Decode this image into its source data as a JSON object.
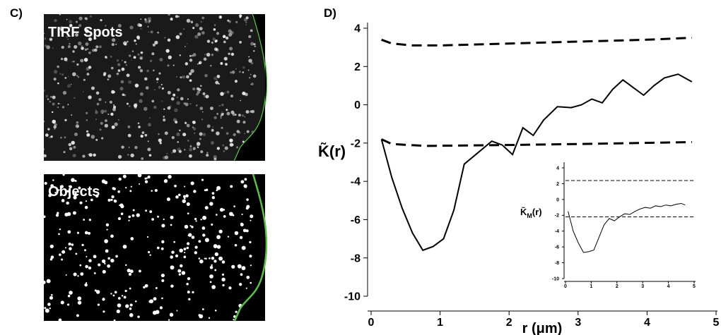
{
  "panel_c": {
    "label": "C)",
    "top_image_label": "TIRF Spots",
    "bottom_image_label": "Objects"
  },
  "chart_data": [
    {
      "type": "line",
      "panel_label": "D)",
      "xlabel": "r (μm)",
      "ylabel": "K̃",
      "ylabel_tail": "(r)",
      "xlim": [
        0,
        5
      ],
      "xticks": [
        0,
        1,
        2,
        3,
        4,
        5
      ],
      "ylim": [
        -10,
        4
      ],
      "yticks": [
        4,
        2,
        0,
        -2,
        -4,
        -6,
        -8,
        -10
      ],
      "series": [
        {
          "color": "#000000",
          "style": "solid",
          "x": [
            0.15,
            0.3,
            0.45,
            0.6,
            0.75,
            0.9,
            1.05,
            1.2,
            1.35,
            1.55,
            1.75,
            1.9,
            2.05,
            2.2,
            2.35,
            2.5,
            2.7,
            2.9,
            3.05,
            3.2,
            3.35,
            3.5,
            3.65,
            3.8,
            3.95,
            4.1,
            4.25,
            4.45,
            4.65
          ],
          "values": [
            -1.8,
            -3.8,
            -5.4,
            -6.7,
            -7.6,
            -7.4,
            -7.0,
            -5.5,
            -3.1,
            -2.5,
            -1.9,
            -2.1,
            -2.6,
            -1.2,
            -1.6,
            -0.8,
            -0.1,
            -0.15,
            0.0,
            0.3,
            0.1,
            0.8,
            1.3,
            0.9,
            0.5,
            1.0,
            1.4,
            1.6,
            1.2
          ]
        },
        {
          "color": "#000000",
          "style": "dashed",
          "x": [
            0.15,
            0.3,
            0.6,
            1,
            2,
            3,
            4,
            4.65
          ],
          "values": [
            3.4,
            3.2,
            3.1,
            3.1,
            3.2,
            3.3,
            3.4,
            3.5
          ]
        },
        {
          "color": "#000000",
          "style": "dashed",
          "x": [
            0.15,
            0.3,
            0.8,
            2,
            3,
            4.65
          ],
          "values": [
            -1.8,
            -2.05,
            -2.15,
            -2.1,
            -2.05,
            -1.95
          ]
        }
      ]
    },
    {
      "type": "line",
      "ylabel": "K̃",
      "ylabel_sub": "M",
      "ylabel_tail": "(r)",
      "xlim": [
        0,
        5
      ],
      "xticks": [
        0,
        1,
        2,
        3,
        4,
        5
      ],
      "ylim": [
        -10,
        4
      ],
      "yticks": [
        4,
        2,
        0,
        -2,
        -4,
        -6,
        -8,
        -10
      ],
      "series": [
        {
          "color": "#000000",
          "style": "solid",
          "x": [
            0.1,
            0.3,
            0.5,
            0.7,
            0.9,
            1.1,
            1.3,
            1.5,
            1.7,
            1.9,
            2.1,
            2.3,
            2.5,
            2.7,
            2.9,
            3.1,
            3.3,
            3.5,
            3.7,
            3.9,
            4.1,
            4.3,
            4.5,
            4.65
          ],
          "values": [
            -1.5,
            -4,
            -5.5,
            -6.7,
            -6.6,
            -6.4,
            -4.8,
            -3.2,
            -2.4,
            -2.7,
            -2.2,
            -1.8,
            -1.9,
            -1.5,
            -1.2,
            -1.0,
            -1.1,
            -0.8,
            -0.9,
            -0.7,
            -0.8,
            -0.6,
            -0.5,
            -0.7
          ]
        },
        {
          "color": "#000000",
          "style": "dashed",
          "x": [
            0,
            5
          ],
          "values": [
            2.4,
            2.4
          ]
        },
        {
          "color": "#000000",
          "style": "dashed",
          "x": [
            0,
            5
          ],
          "values": [
            -2.2,
            -2.2
          ]
        }
      ]
    }
  ]
}
